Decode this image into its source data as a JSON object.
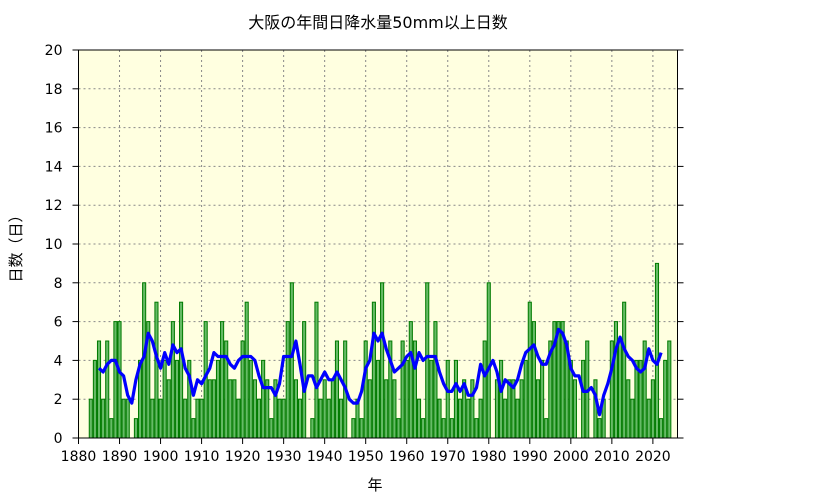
{
  "chart_data": {
    "type": "bar",
    "title": "大阪の年間日降水量50mm以上日数",
    "xlabel": "年",
    "ylabel": "日数（日）",
    "xlim": [
      1880,
      2026
    ],
    "ylim": [
      0,
      20
    ],
    "x_ticks": [
      1880,
      1890,
      1900,
      1910,
      1920,
      1930,
      1940,
      1950,
      1960,
      1970,
      1980,
      1990,
      2000,
      2010,
      2020
    ],
    "y_ticks": [
      0,
      2,
      4,
      6,
      8,
      10,
      12,
      14,
      16,
      18,
      20
    ],
    "grid": true,
    "first_year": 1883,
    "values": [
      2,
      4,
      5,
      2,
      5,
      1,
      6,
      6,
      2,
      2,
      0,
      1,
      4,
      8,
      6,
      2,
      7,
      2,
      4,
      3,
      6,
      4,
      7,
      2,
      4,
      1,
      2,
      2,
      6,
      3,
      3,
      4,
      6,
      5,
      3,
      3,
      2,
      5,
      7,
      4,
      3,
      2,
      4,
      3,
      1,
      3,
      2,
      2,
      6,
      8,
      3,
      2,
      6,
      0,
      1,
      7,
      2,
      3,
      2,
      3,
      5,
      2,
      5,
      0,
      1,
      2,
      1,
      5,
      3,
      7,
      4,
      8,
      3,
      5,
      3,
      1,
      5,
      4,
      6,
      5,
      2,
      1,
      8,
      4,
      6,
      2,
      1,
      4,
      1,
      4,
      2,
      3,
      2,
      3,
      1,
      2,
      5,
      8,
      0,
      3,
      4,
      2,
      3,
      3,
      2,
      3,
      4,
      7,
      6,
      3,
      4,
      1,
      5,
      6,
      6,
      6,
      5,
      4,
      3,
      0,
      4,
      5,
      0,
      3,
      1,
      2,
      0,
      5,
      6,
      5,
      7,
      3,
      2,
      4,
      4,
      5,
      2,
      3,
      9,
      1,
      4,
      5
    ],
    "moving_average_window": 5,
    "colors": {
      "plot_background": "#ffffe0",
      "bar_fill": "#66bb66",
      "bar_edge": "#007a00",
      "line": "#0000ff",
      "grid": "#888888"
    }
  }
}
